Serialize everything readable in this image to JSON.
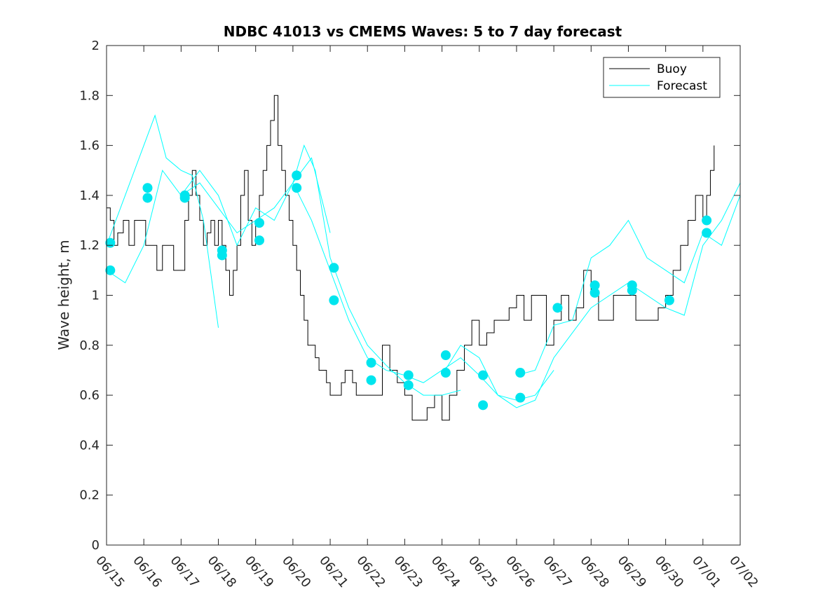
{
  "chart_data": {
    "type": "line",
    "title": "NDBC 41013 vs CMEMS Waves: 5 to 7 day forecast",
    "xlabel": "",
    "ylabel": "Wave height, m",
    "xlim": [
      "06/15",
      "07/02"
    ],
    "ylim": [
      0,
      2
    ],
    "x_tick_labels": [
      "06/15",
      "06/16",
      "06/17",
      "06/18",
      "06/19",
      "06/20",
      "06/21",
      "06/22",
      "06/23",
      "06/24",
      "06/25",
      "06/26",
      "06/27",
      "06/28",
      "06/29",
      "06/30",
      "07/01",
      "07/02"
    ],
    "y_tick_labels": [
      "0",
      "0.2",
      "0.4",
      "0.6",
      "0.8",
      "1",
      "1.2",
      "1.4",
      "1.6",
      "1.8",
      "2"
    ],
    "y_ticks": [
      0,
      0.2,
      0.4,
      0.6,
      0.8,
      1,
      1.2,
      1.4,
      1.6,
      1.8,
      2
    ],
    "grid": false,
    "legend_position": "top-right",
    "colors": {
      "buoy": "#000000",
      "forecast": "#00ffff",
      "markers": "#00e5ee"
    },
    "series": [
      {
        "name": "Buoy",
        "note_x_units": "days after 06/15",
        "x": [
          0,
          0.1,
          0.2,
          0.3,
          0.45,
          0.6,
          0.75,
          0.9,
          1.05,
          1.2,
          1.35,
          1.5,
          1.65,
          1.8,
          1.95,
          2.1,
          2.2,
          2.3,
          2.4,
          2.5,
          2.6,
          2.7,
          2.8,
          2.9,
          3.0,
          3.1,
          3.2,
          3.3,
          3.4,
          3.5,
          3.6,
          3.7,
          3.8,
          3.9,
          4.0,
          4.1,
          4.2,
          4.3,
          4.4,
          4.5,
          4.6,
          4.7,
          4.8,
          4.9,
          5.0,
          5.1,
          5.2,
          5.3,
          5.4,
          5.5,
          5.6,
          5.7,
          5.8,
          5.9,
          6.0,
          6.1,
          6.2,
          6.3,
          6.4,
          6.5,
          6.6,
          6.7,
          6.8,
          6.9,
          7.0,
          7.2,
          7.4,
          7.6,
          7.8,
          8.0,
          8.2,
          8.4,
          8.6,
          8.8,
          9.0,
          9.2,
          9.4,
          9.6,
          9.8,
          10.0,
          10.2,
          10.4,
          10.6,
          10.8,
          11.0,
          11.2,
          11.4,
          11.6,
          11.8,
          12.0,
          12.2,
          12.4,
          12.6,
          12.8,
          13.0,
          13.2,
          13.4,
          13.6,
          13.8,
          14.0,
          14.2,
          14.4,
          14.6,
          14.8,
          15.0,
          15.2,
          15.4,
          15.6,
          15.8,
          16.0,
          16.1,
          16.2,
          16.3
        ],
        "y": [
          1.35,
          1.3,
          1.2,
          1.25,
          1.3,
          1.2,
          1.3,
          1.3,
          1.2,
          1.2,
          1.1,
          1.2,
          1.2,
          1.1,
          1.1,
          1.3,
          1.4,
          1.5,
          1.4,
          1.3,
          1.2,
          1.25,
          1.3,
          1.2,
          1.3,
          1.2,
          1.1,
          1.0,
          1.1,
          1.2,
          1.4,
          1.5,
          1.3,
          1.2,
          1.3,
          1.4,
          1.5,
          1.6,
          1.7,
          1.8,
          1.6,
          1.5,
          1.4,
          1.3,
          1.2,
          1.1,
          1.0,
          0.9,
          0.8,
          0.8,
          0.75,
          0.7,
          0.7,
          0.65,
          0.6,
          0.6,
          0.6,
          0.65,
          0.7,
          0.7,
          0.65,
          0.6,
          0.6,
          0.6,
          0.6,
          0.6,
          0.8,
          0.7,
          0.65,
          0.6,
          0.5,
          0.5,
          0.55,
          0.6,
          0.5,
          0.6,
          0.7,
          0.8,
          0.9,
          0.8,
          0.85,
          0.9,
          0.9,
          0.95,
          1.0,
          0.9,
          1.0,
          1.0,
          0.8,
          0.9,
          1.0,
          0.9,
          0.95,
          1.1,
          1.0,
          0.9,
          0.9,
          1.0,
          1.0,
          1.0,
          0.9,
          0.9,
          0.9,
          0.95,
          1.0,
          1.1,
          1.2,
          1.3,
          1.4,
          1.3,
          1.4,
          1.5,
          1.6
        ]
      },
      {
        "name": "Forecast",
        "note_x_units": "days after 06/15",
        "x": [
          0,
          0.5,
          1.0,
          1.3,
          1.6,
          2.0,
          2.3,
          2.6,
          3.0
        ],
        "y": [
          1.2,
          1.4,
          1.6,
          1.72,
          1.55,
          1.5,
          1.48,
          1.3,
          0.87
        ]
      },
      {
        "x": [
          0,
          0.5,
          1.0,
          1.5,
          2.0,
          2.5,
          3.0,
          3.5,
          4.0,
          4.5,
          5.0,
          5.5,
          6.0
        ],
        "y": [
          1.1,
          1.05,
          1.2,
          1.5,
          1.4,
          1.5,
          1.4,
          1.2,
          1.35,
          1.3,
          1.45,
          1.55,
          1.25
        ]
      },
      {
        "x": [
          2.0,
          2.5,
          3.0,
          3.5,
          4.0,
          4.5,
          5.0,
          5.3,
          5.6,
          6.0,
          6.5,
          7.0,
          7.5,
          8.0,
          8.5,
          9.0,
          9.5
        ],
        "y": [
          1.4,
          1.45,
          1.35,
          1.25,
          1.3,
          1.35,
          1.45,
          1.6,
          1.5,
          1.15,
          0.95,
          0.8,
          0.72,
          0.65,
          0.6,
          0.6,
          0.62
        ]
      },
      {
        "x": [
          5.0,
          5.5,
          6.0,
          6.5,
          7.0,
          7.5,
          8.0,
          8.5,
          9.0,
          9.5,
          10.0,
          10.5,
          11.0,
          11.5,
          12.0
        ],
        "y": [
          1.45,
          1.3,
          1.1,
          0.9,
          0.75,
          0.7,
          0.68,
          0.65,
          0.7,
          0.75,
          0.68,
          0.6,
          0.58,
          0.6,
          0.7
        ]
      },
      {
        "x": [
          9.0,
          9.5,
          10.0,
          10.5,
          11.0,
          11.5,
          12.0,
          12.5,
          13.0,
          13.5,
          14.0,
          14.5,
          15.0,
          15.5,
          16.0,
          16.5,
          17.0
        ],
        "y": [
          0.68,
          0.8,
          0.75,
          0.6,
          0.55,
          0.58,
          0.75,
          0.85,
          0.95,
          1.0,
          1.05,
          1.0,
          0.95,
          0.92,
          1.2,
          1.3,
          1.45
        ]
      },
      {
        "x": [
          11.0,
          11.5,
          12.0,
          12.5,
          13.0,
          13.5,
          14.0,
          14.5,
          15.0,
          15.5,
          16.0,
          16.5,
          17.0
        ],
        "y": [
          0.68,
          0.7,
          0.88,
          0.9,
          1.15,
          1.2,
          1.3,
          1.15,
          1.1,
          1.05,
          1.25,
          1.2,
          1.4
        ]
      }
    ],
    "markers": {
      "note_x_units": "days after 06/15",
      "x": [
        0.1,
        0.1,
        1.1,
        1.1,
        2.1,
        2.1,
        3.1,
        3.1,
        4.1,
        4.1,
        5.1,
        5.1,
        6.1,
        6.1,
        7.1,
        7.1,
        8.1,
        8.1,
        9.1,
        9.1,
        10.1,
        10.1,
        11.1,
        11.1,
        12.1,
        13.1,
        13.1,
        14.1,
        14.1,
        15.1,
        16.1,
        16.1
      ],
      "y": [
        1.1,
        1.21,
        1.39,
        1.43,
        1.39,
        1.4,
        1.16,
        1.18,
        1.22,
        1.29,
        1.43,
        1.48,
        0.98,
        1.11,
        0.66,
        0.73,
        0.64,
        0.68,
        0.69,
        0.76,
        0.56,
        0.68,
        0.59,
        0.69,
        0.95,
        1.01,
        1.04,
        1.02,
        1.04,
        0.98,
        1.25,
        1.3
      ]
    }
  }
}
